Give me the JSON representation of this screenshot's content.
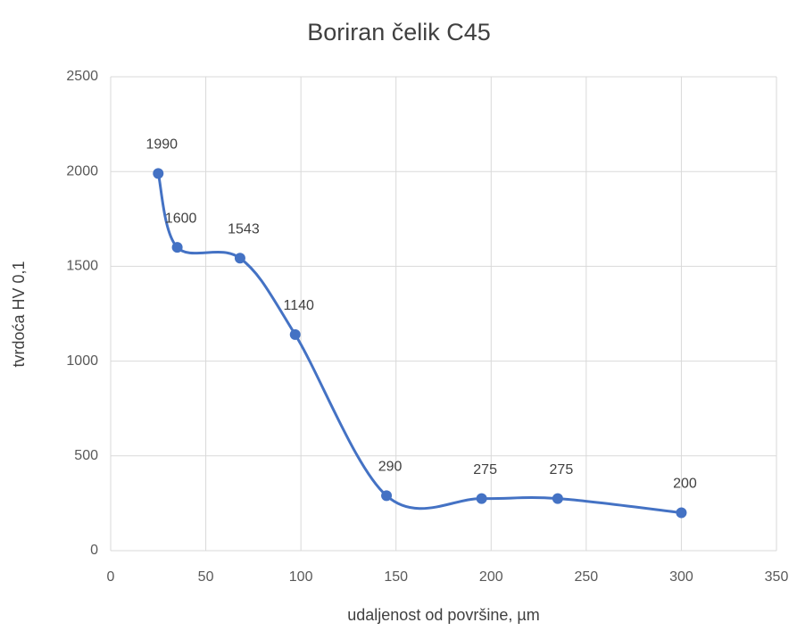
{
  "chart_data": {
    "type": "scatter",
    "title": "Boriran čelik C45",
    "xlabel": "udaljenost od površine, µm",
    "ylabel": "tvrdoća HV 0,1",
    "series": [
      {
        "name": "Boriran čelik C45",
        "color": "#4472c4",
        "x": [
          25,
          35,
          68,
          97,
          145,
          195,
          235,
          300
        ],
        "values": [
          1990,
          1600,
          1543,
          1140,
          290,
          275,
          275,
          200
        ]
      }
    ],
    "xlim": [
      0,
      350
    ],
    "xticks": [
      0,
      50,
      100,
      150,
      200,
      250,
      300,
      350
    ],
    "ylim": [
      0,
      2500
    ],
    "yticks": [
      0,
      500,
      1000,
      1500,
      2000,
      2500
    ],
    "grid": true,
    "smooth": true
  }
}
